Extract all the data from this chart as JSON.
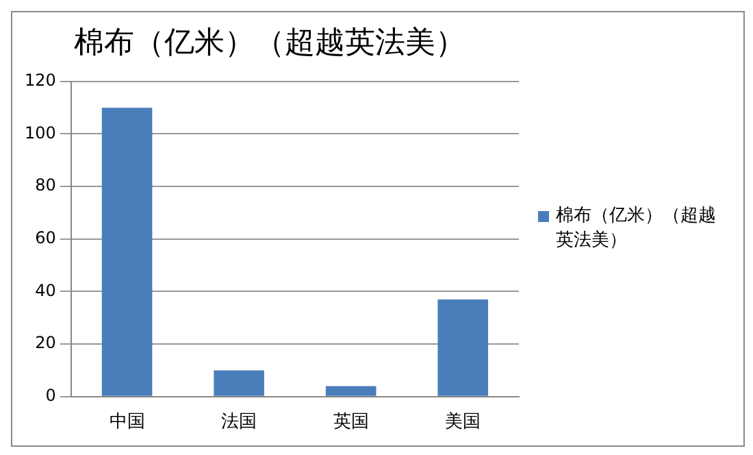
{
  "chart_data": {
    "type": "bar",
    "title": "棉布（亿米）（超越英法美）",
    "categories": [
      "中国",
      "法国",
      "英国",
      "美国"
    ],
    "series": [
      {
        "name": "棉布（亿米）（超越英法美）",
        "color": "#4a7ebb",
        "values": [
          110,
          10,
          4,
          37
        ]
      }
    ],
    "ylim": [
      0,
      120
    ],
    "yticks": [
      0,
      20,
      40,
      60,
      80,
      100,
      120
    ],
    "grid": "y",
    "legend": "right"
  }
}
